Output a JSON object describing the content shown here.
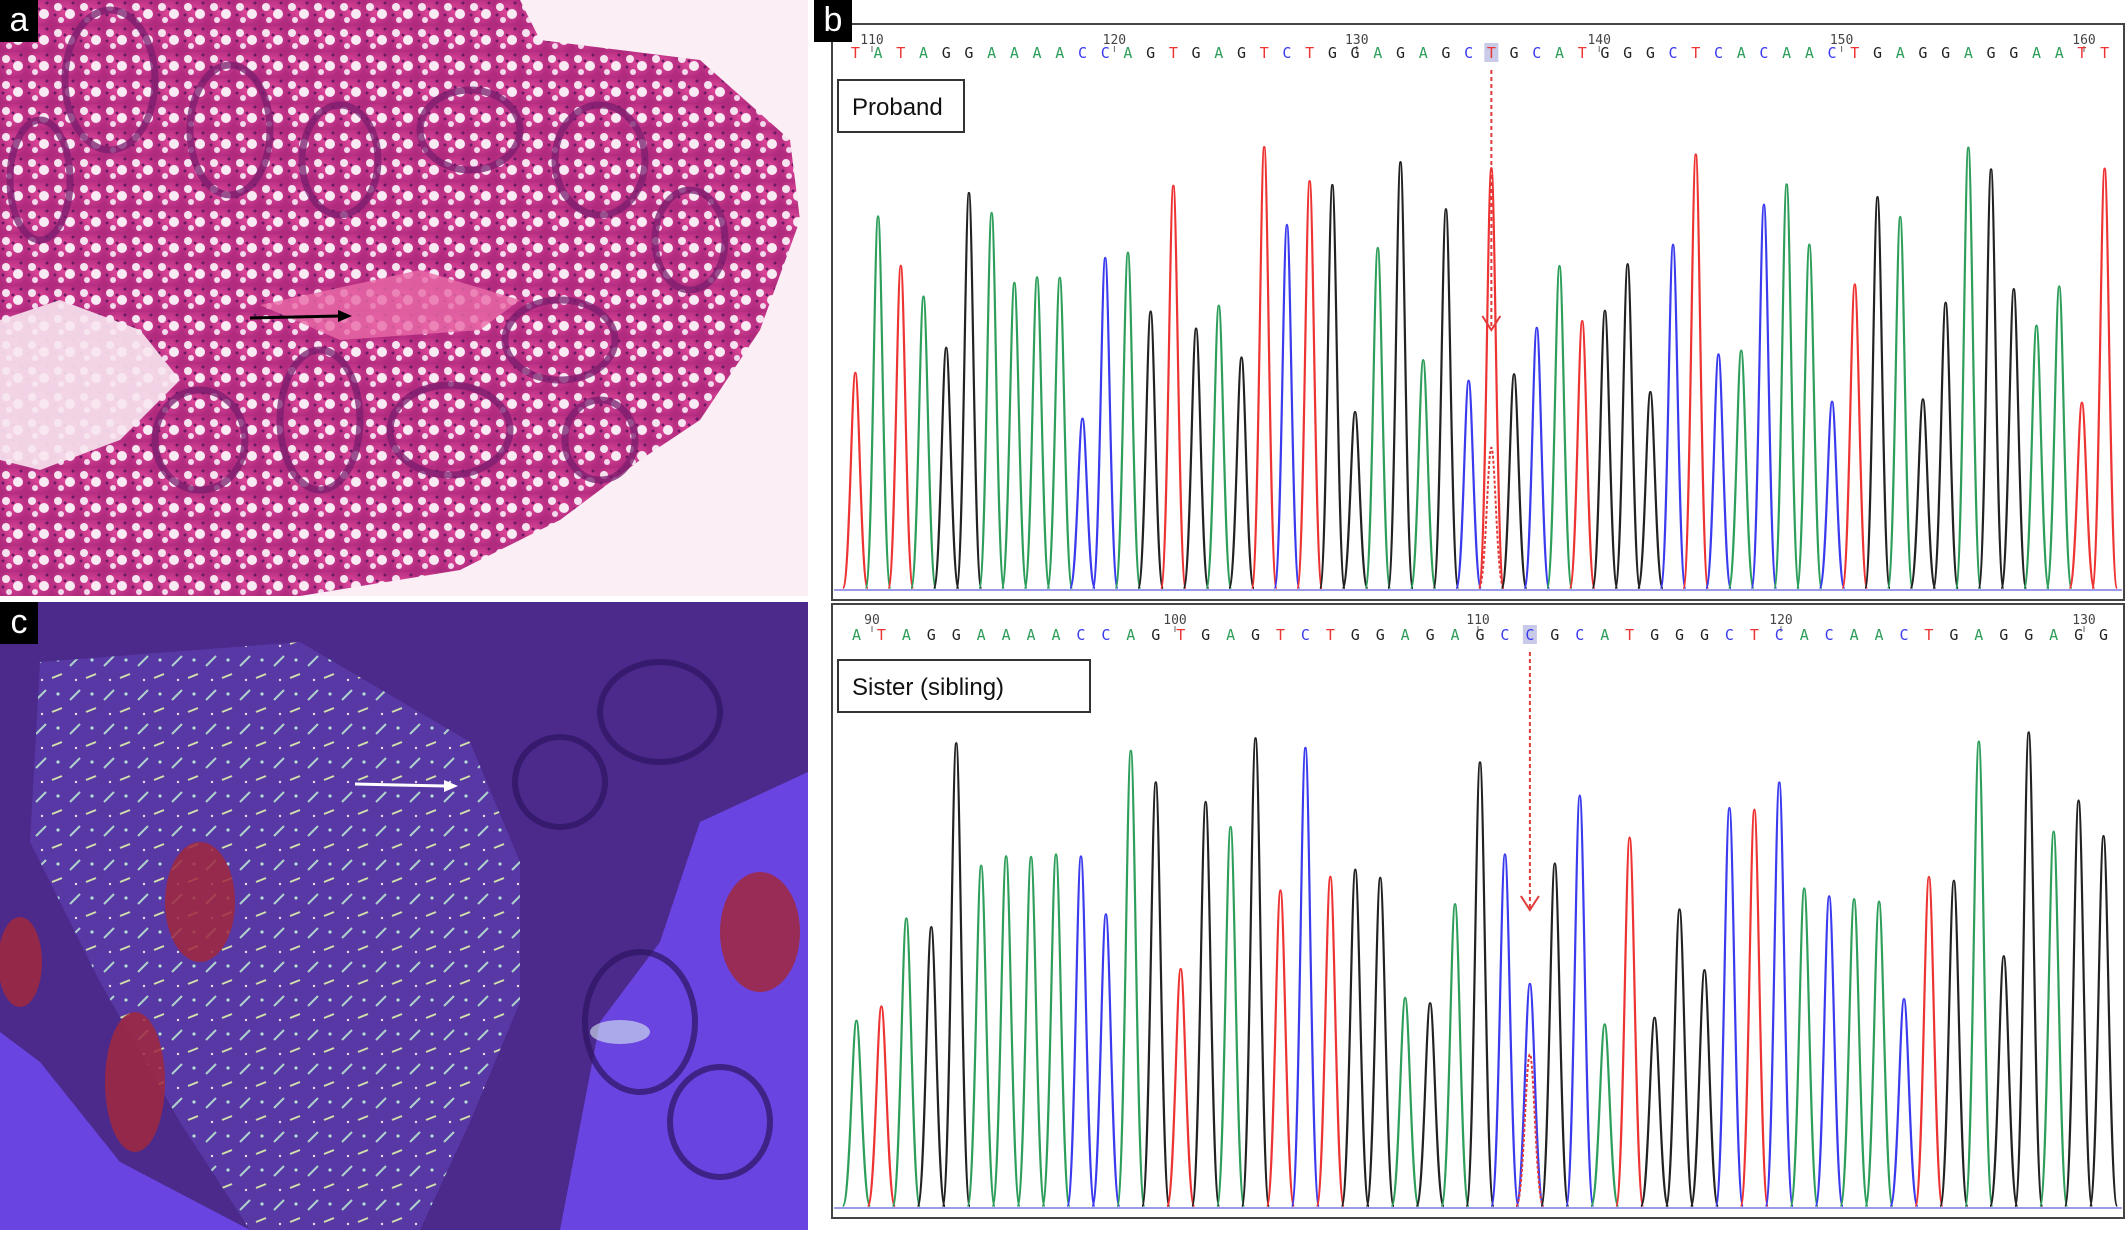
{
  "panels": {
    "a": {
      "letter": "a"
    },
    "b": {
      "letter": "b"
    },
    "c": {
      "letter": "c"
    }
  },
  "traces": [
    {
      "label": "Proband",
      "sequence": "TATAGGAAAACCAGTGAGTCTGGAGAGCTGCATGGGCTCACAACTGAGGAGGAATT",
      "highlight_index": 28,
      "position_ticks": [
        "110",
        "120",
        "130",
        "140",
        "150",
        "160"
      ]
    },
    {
      "label": "Sister (sibling)",
      "sequence": "ATAGGAAAACCAGTGAGTCTGGAGAGCCGCATGGGCTCACAACTGAGGAGG",
      "highlight_index": 27,
      "position_ticks": [
        "90",
        "100",
        "110",
        "120",
        "130"
      ]
    }
  ],
  "base_colors": {
    "A": "#2e9e5b",
    "C": "#3a3aee",
    "G": "#222222",
    "T": "#ee3333"
  },
  "annotation_color": "#e23b3b"
}
